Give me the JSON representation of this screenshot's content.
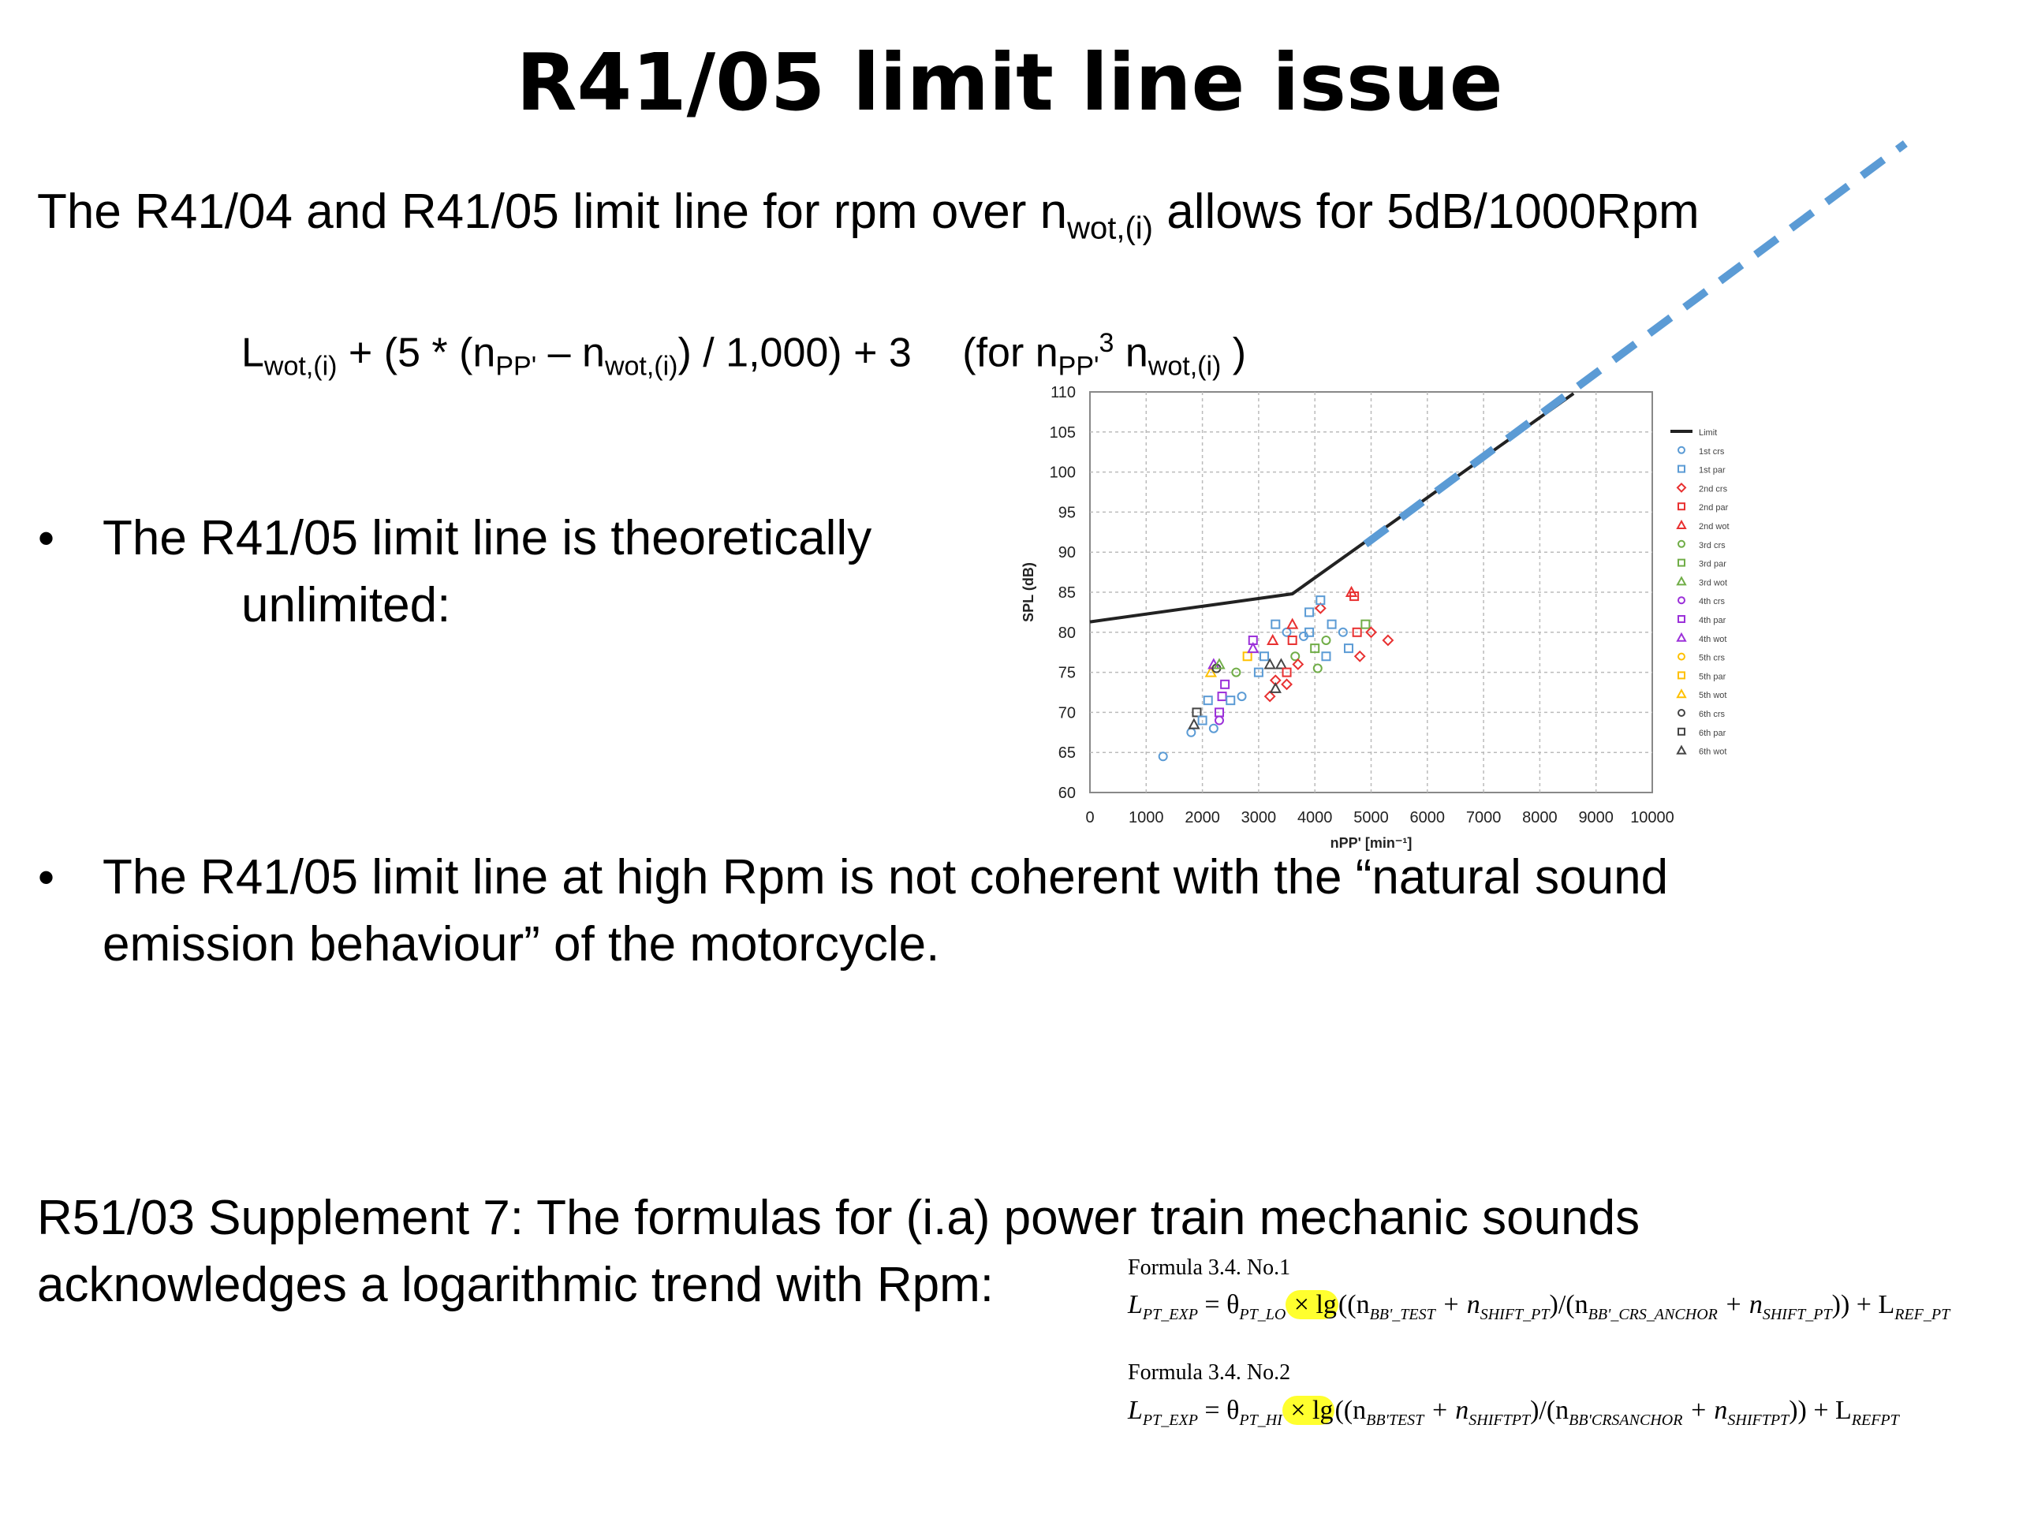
{
  "title": "R41/05 limit line issue",
  "intro": {
    "prefix": "The R41/04 and R41/05 limit line for rpm over n",
    "sub": "wot,(i)",
    "suffix": " allows for 5dB/1000Rpm"
  },
  "limit_formula": {
    "L": "L",
    "L_sub": "wot,(i)",
    "part1": " + (5 * (n",
    "npp_sub": "PP'",
    "minus_n": " – n",
    "nwot_sub": "wot,(i)",
    "part2": ") / 1,000) + 3",
    "for_open": "(for n",
    "for_npp_sub": "PP'",
    "for_sup": "3",
    "for_n": " n",
    "for_nwot_sub": "wot,(i)",
    "for_close": " )"
  },
  "bullets": [
    {
      "marker": "•",
      "line1": "The R41/05 limit line is theoretically",
      "line2": "unlimited:"
    },
    {
      "marker": "•",
      "line1": "The R41/05 limit line at high Rpm is not coherent with the “natural sound",
      "line2": "emission behaviour” of the motorcycle."
    }
  ],
  "supplement": {
    "line1": "R51/03 Supplement 7: The formulas for (i.a) power train mechanic sounds",
    "line2": "acknowledges a logarithmic trend with Rpm:"
  },
  "formulas": [
    {
      "name": "Formula 3.4. No.1",
      "lhs": "L",
      "lhs_sub": "PT_EXP",
      "eq": " = θ",
      "theta_sub": "PT_LO",
      "times": " × lg",
      "open": "((n",
      "a_sub": "BB'_TEST",
      "plus1": " + n",
      "b_sub": "SHIFT_PT",
      "div": ")/(n",
      "c_sub": "BB'_CRS_ANCHOR",
      "plus2": " + n",
      "d_sub": "SHIFT_PT",
      "close": ")) + L",
      "e_sub": "REF_PT"
    },
    {
      "name": "Formula 3.4. No.2",
      "lhs": "L",
      "lhs_sub": "PT_EXP",
      "eq": " = θ",
      "theta_sub": "PT_HI",
      "times": " × lg",
      "open": "((n",
      "a_sub": "BB'TEST",
      "plus1": " + n",
      "b_sub": "SHIFTPT",
      "div": ")/(n",
      "c_sub": "BB'CRSANCHOR",
      "plus2": " + n",
      "d_sub": "SHIFTPT",
      "close": ")) + L",
      "e_sub": "REFPT"
    }
  ],
  "chart_data": {
    "type": "scatter",
    "xlabel": "nPP' [min⁻¹]",
    "ylabel": "SPL (dB)",
    "xlim": [
      0,
      10000
    ],
    "ylim": [
      60,
      110
    ],
    "x_ticks": [
      0,
      1000,
      2000,
      3000,
      4000,
      5000,
      6000,
      7000,
      8000,
      9000,
      10000
    ],
    "y_ticks": [
      60,
      65,
      70,
      75,
      80,
      85,
      90,
      95,
      100,
      105,
      110
    ],
    "grid": true,
    "legend_position": "right",
    "limit_line": {
      "name": "Limit",
      "color": "#222222",
      "points": [
        [
          0,
          81.3
        ],
        [
          3600,
          84.8
        ],
        [
          8600,
          109.8
        ]
      ]
    },
    "extension_line": {
      "color": "#5b9bd5",
      "style": "dashed",
      "points": [
        [
          4900,
          91
        ],
        [
          14500,
          141
        ]
      ]
    },
    "legend": [
      {
        "name": "Limit",
        "marker": "line",
        "color": "#222222"
      },
      {
        "name": "1st crs",
        "marker": "circle",
        "color": "#5b9bd5"
      },
      {
        "name": "1st par",
        "marker": "square",
        "color": "#5b9bd5"
      },
      {
        "name": "2nd crs",
        "marker": "diamond",
        "color": "#e83030"
      },
      {
        "name": "2nd par",
        "marker": "square",
        "color": "#e83030"
      },
      {
        "name": "2nd wot",
        "marker": "triangle",
        "color": "#e83030"
      },
      {
        "name": "3rd crs",
        "marker": "circle",
        "color": "#70ad47"
      },
      {
        "name": "3rd par",
        "marker": "square",
        "color": "#70ad47"
      },
      {
        "name": "3rd wot",
        "marker": "triangle",
        "color": "#70ad47"
      },
      {
        "name": "4th crs",
        "marker": "circle",
        "color": "#9b30d9"
      },
      {
        "name": "4th par",
        "marker": "square",
        "color": "#9b30d9"
      },
      {
        "name": "4th wot",
        "marker": "triangle",
        "color": "#9b30d9"
      },
      {
        "name": "5th crs",
        "marker": "circle",
        "color": "#ffc000"
      },
      {
        "name": "5th par",
        "marker": "square",
        "color": "#ffc000"
      },
      {
        "name": "5th wot",
        "marker": "triangle",
        "color": "#ffc000"
      },
      {
        "name": "6th crs",
        "marker": "circle",
        "color": "#444444"
      },
      {
        "name": "6th par",
        "marker": "square",
        "color": "#444444"
      },
      {
        "name": "6th wot",
        "marker": "triangle",
        "color": "#444444"
      }
    ],
    "points": [
      {
        "x": 1300,
        "y": 64.5,
        "s": 1
      },
      {
        "x": 1800,
        "y": 67.5,
        "s": 1
      },
      {
        "x": 1850,
        "y": 68.5,
        "s": 17
      },
      {
        "x": 1900,
        "y": 70,
        "s": 16
      },
      {
        "x": 2000,
        "y": 69,
        "s": 2
      },
      {
        "x": 2100,
        "y": 71.5,
        "s": 2
      },
      {
        "x": 2150,
        "y": 75,
        "s": 14
      },
      {
        "x": 2200,
        "y": 76,
        "s": 11
      },
      {
        "x": 2250,
        "y": 75.5,
        "s": 15
      },
      {
        "x": 2200,
        "y": 68,
        "s": 1
      },
      {
        "x": 2300,
        "y": 70,
        "s": 10
      },
      {
        "x": 2300,
        "y": 69,
        "s": 9
      },
      {
        "x": 2350,
        "y": 72,
        "s": 10
      },
      {
        "x": 2400,
        "y": 73.5,
        "s": 10
      },
      {
        "x": 2500,
        "y": 71.5,
        "s": 2
      },
      {
        "x": 2300,
        "y": 76,
        "s": 8
      },
      {
        "x": 2600,
        "y": 75,
        "s": 6
      },
      {
        "x": 2700,
        "y": 72,
        "s": 1
      },
      {
        "x": 2800,
        "y": 77,
        "s": 13
      },
      {
        "x": 2900,
        "y": 79,
        "s": 10
      },
      {
        "x": 2900,
        "y": 78,
        "s": 11
      },
      {
        "x": 3000,
        "y": 75,
        "s": 2
      },
      {
        "x": 3100,
        "y": 77,
        "s": 2
      },
      {
        "x": 3200,
        "y": 76,
        "s": 17
      },
      {
        "x": 3200,
        "y": 72,
        "s": 3
      },
      {
        "x": 3250,
        "y": 79,
        "s": 5
      },
      {
        "x": 3300,
        "y": 81,
        "s": 2
      },
      {
        "x": 3300,
        "y": 74,
        "s": 3
      },
      {
        "x": 3400,
        "y": 76,
        "s": 17
      },
      {
        "x": 3500,
        "y": 80,
        "s": 1
      },
      {
        "x": 3500,
        "y": 75,
        "s": 4
      },
      {
        "x": 3600,
        "y": 79,
        "s": 4
      },
      {
        "x": 3600,
        "y": 81,
        "s": 5
      },
      {
        "x": 3650,
        "y": 77,
        "s": 6
      },
      {
        "x": 3700,
        "y": 76,
        "s": 3
      },
      {
        "x": 3800,
        "y": 79.5,
        "s": 1
      },
      {
        "x": 3900,
        "y": 80,
        "s": 2
      },
      {
        "x": 3900,
        "y": 82.5,
        "s": 2
      },
      {
        "x": 4000,
        "y": 78,
        "s": 7
      },
      {
        "x": 4100,
        "y": 83,
        "s": 3
      },
      {
        "x": 4100,
        "y": 84,
        "s": 2
      },
      {
        "x": 4200,
        "y": 79,
        "s": 6
      },
      {
        "x": 4200,
        "y": 77,
        "s": 2
      },
      {
        "x": 4300,
        "y": 81,
        "s": 2
      },
      {
        "x": 4500,
        "y": 80,
        "s": 1
      },
      {
        "x": 4600,
        "y": 78,
        "s": 2
      },
      {
        "x": 4650,
        "y": 85,
        "s": 5
      },
      {
        "x": 4700,
        "y": 84.5,
        "s": 4
      },
      {
        "x": 4750,
        "y": 80,
        "s": 4
      },
      {
        "x": 4800,
        "y": 77,
        "s": 3
      },
      {
        "x": 4900,
        "y": 81,
        "s": 7
      },
      {
        "x": 5000,
        "y": 80,
        "s": 3
      },
      {
        "x": 5300,
        "y": 79,
        "s": 3
      },
      {
        "x": 4050,
        "y": 75.5,
        "s": 6
      },
      {
        "x": 3300,
        "y": 73,
        "s": 17
      },
      {
        "x": 3500,
        "y": 73.5,
        "s": 3
      }
    ]
  }
}
